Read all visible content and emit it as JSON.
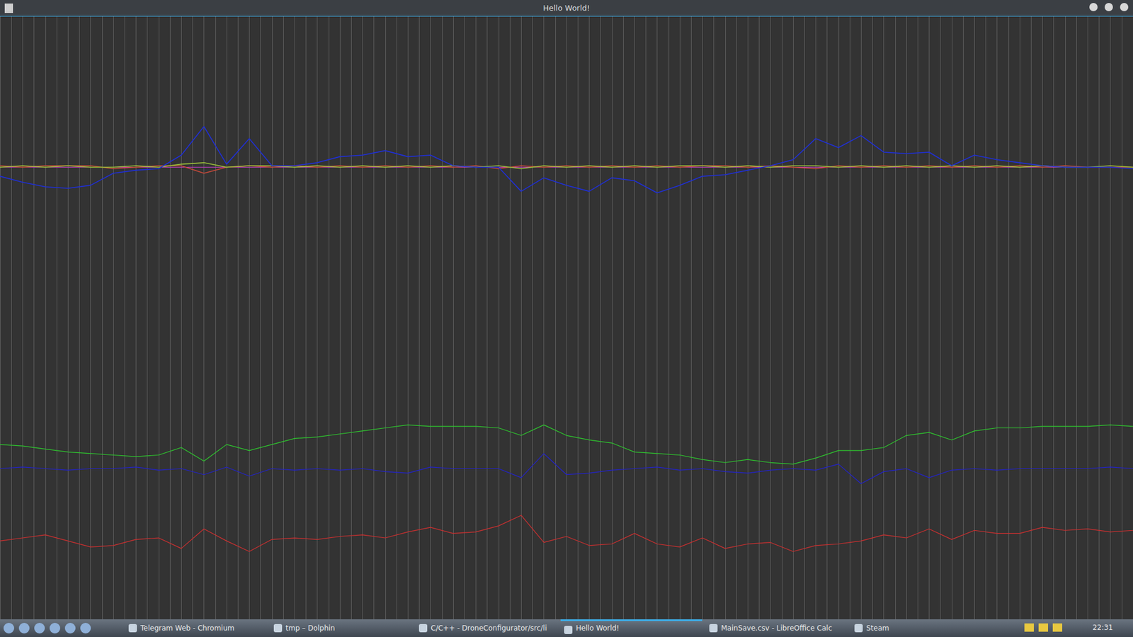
{
  "window_title": "Hello World!",
  "chart_data": [
    {
      "type": "line",
      "x": [
        0,
        2,
        4,
        6,
        8,
        10,
        12,
        14,
        16,
        18,
        20,
        22,
        24,
        26,
        28,
        30,
        32,
        34,
        36,
        38,
        40,
        42,
        44,
        46,
        48,
        50,
        52,
        54,
        56,
        58,
        60,
        62,
        64,
        66,
        68,
        70,
        72,
        74,
        76,
        78,
        80,
        82,
        84,
        86,
        88,
        90,
        92,
        94,
        96,
        98,
        100
      ],
      "xlim": [
        0,
        100
      ],
      "xticks": [
        0,
        1,
        2,
        3,
        4,
        5,
        6,
        7,
        8,
        9,
        10,
        11,
        12,
        13,
        14,
        15,
        16,
        17,
        18,
        19,
        20,
        21,
        22,
        23,
        24,
        25,
        26,
        27,
        28,
        29,
        30,
        31,
        32,
        33,
        34,
        35,
        36,
        37,
        38,
        39,
        40,
        41,
        42,
        43,
        44,
        45,
        46,
        47,
        48,
        49,
        50,
        51,
        52,
        53,
        54,
        55,
        56,
        57,
        58,
        59,
        60,
        61,
        62,
        63,
        64,
        65,
        66,
        67,
        68,
        69,
        70,
        71,
        72,
        73,
        74,
        75,
        76,
        77,
        78,
        79,
        80,
        81,
        82,
        83,
        84,
        85,
        86,
        87,
        88,
        89,
        90,
        91,
        92,
        93,
        94,
        95,
        96,
        97,
        98,
        99,
        100
      ],
      "ylim": [
        -100,
        100
      ],
      "yticks": [
        -100,
        100
      ],
      "grid": true,
      "tick_labels": false,
      "series": [
        {
          "color": "#c84a3a",
          "values": [
            1,
            0,
            1,
            1,
            1,
            -1,
            0,
            1,
            1,
            -4,
            0,
            1,
            0,
            1,
            0,
            1,
            0,
            1,
            0,
            1,
            0,
            1,
            -1,
            1,
            0,
            1,
            0,
            1,
            0,
            1,
            0,
            1,
            1,
            0,
            1,
            0,
            -1,
            1,
            0,
            1,
            0,
            1,
            0,
            1,
            0,
            1,
            0,
            1,
            0,
            0,
            0
          ]
        },
        {
          "color": "#9bbf3a",
          "values": [
            0,
            1,
            0,
            1,
            0,
            0,
            1,
            0,
            2,
            3,
            0,
            1,
            1,
            0,
            1,
            0,
            1,
            0,
            1,
            0,
            1,
            0,
            1,
            -1,
            1,
            0,
            1,
            0,
            1,
            0,
            1,
            1,
            0,
            1,
            0,
            1,
            1,
            0,
            1,
            0,
            1,
            0,
            1,
            0,
            1,
            0,
            1,
            0,
            0,
            1,
            0
          ]
        },
        {
          "color": "#1f2fd8",
          "values": [
            -6,
            -10,
            -13,
            -14,
            -12,
            -4,
            -2,
            -1,
            8,
            27,
            2,
            19,
            1,
            1,
            3,
            7,
            8,
            11,
            7,
            8,
            1,
            0,
            0,
            -16,
            -7,
            -12,
            -16,
            -7,
            -9,
            -17,
            -12,
            -6,
            -5,
            -2,
            1,
            5,
            19,
            13,
            21,
            10,
            9,
            10,
            1,
            8,
            5,
            3,
            1,
            0,
            0,
            0,
            -1
          ]
        }
      ]
    },
    {
      "type": "line",
      "x": [
        0,
        2,
        4,
        6,
        8,
        10,
        12,
        14,
        16,
        18,
        20,
        22,
        24,
        26,
        28,
        30,
        32,
        34,
        36,
        38,
        40,
        42,
        44,
        46,
        48,
        50,
        52,
        54,
        56,
        58,
        60,
        62,
        64,
        66,
        68,
        70,
        72,
        74,
        76,
        78,
        80,
        82,
        84,
        86,
        88,
        90,
        92,
        94,
        96,
        98,
        100
      ],
      "xlim": [
        0,
        100
      ],
      "xticks": [
        0,
        1,
        2,
        3,
        4,
        5,
        6,
        7,
        8,
        9,
        10,
        11,
        12,
        13,
        14,
        15,
        16,
        17,
        18,
        19,
        20,
        21,
        22,
        23,
        24,
        25,
        26,
        27,
        28,
        29,
        30,
        31,
        32,
        33,
        34,
        35,
        36,
        37,
        38,
        39,
        40,
        41,
        42,
        43,
        44,
        45,
        46,
        47,
        48,
        49,
        50,
        51,
        52,
        53,
        54,
        55,
        56,
        57,
        58,
        59,
        60,
        61,
        62,
        63,
        64,
        65,
        66,
        67,
        68,
        69,
        70,
        71,
        72,
        73,
        74,
        75,
        76,
        77,
        78,
        79,
        80,
        81,
        82,
        83,
        84,
        85,
        86,
        87,
        88,
        89,
        90,
        91,
        92,
        93,
        94,
        95,
        96,
        97,
        98,
        99,
        100
      ],
      "ylim": [
        -100,
        100
      ],
      "yticks": [
        -100,
        100
      ],
      "grid": true,
      "tick_labels": false,
      "series": [
        {
          "color": "#2ecc2e",
          "values": [
            16,
            15,
            13,
            11,
            10,
            9,
            8,
            9,
            14,
            5,
            16,
            12,
            16,
            20,
            21,
            23,
            25,
            27,
            29,
            28,
            28,
            28,
            27,
            22,
            29,
            22,
            19,
            17,
            11,
            10,
            9,
            6,
            4,
            6,
            4,
            3,
            7,
            12,
            12,
            14,
            22,
            24,
            19,
            25,
            27,
            27,
            28,
            28,
            28,
            29,
            28
          ]
        },
        {
          "color": "#2222d0",
          "values": [
            0,
            1,
            0,
            -1,
            0,
            0,
            1,
            -1,
            0,
            -4,
            1,
            -5,
            0,
            -1,
            0,
            -1,
            0,
            -2,
            -3,
            1,
            0,
            0,
            0,
            -6,
            10,
            -4,
            -3,
            -1,
            0,
            1,
            -1,
            0,
            -2,
            -3,
            -1,
            0,
            -1,
            3,
            -10,
            -2,
            0,
            -6,
            -1,
            0,
            -1,
            0,
            0,
            0,
            0,
            1,
            0
          ]
        },
        {
          "color": "#d03030",
          "values": [
            -48,
            -46,
            -44,
            -48,
            -52,
            -51,
            -47,
            -46,
            -53,
            -40,
            -48,
            -55,
            -47,
            -46,
            -47,
            -45,
            -44,
            -46,
            -42,
            -39,
            -43,
            -42,
            -38,
            -31,
            -49,
            -45,
            -51,
            -50,
            -43,
            -50,
            -52,
            -46,
            -53,
            -50,
            -49,
            -55,
            -51,
            -50,
            -48,
            -44,
            -46,
            -40,
            -47,
            -41,
            -43,
            -43,
            -39,
            -41,
            -40,
            -42,
            -41
          ]
        }
      ]
    }
  ],
  "taskbar": {
    "tasks": [
      "Telegram Web - Chromium",
      "tmp – Dolphin",
      "C/C++ - DroneConfigurator/src/li",
      "Hello World!",
      "MainSave.csv - LibreOffice Calc",
      "Steam"
    ],
    "active": "Hello World!",
    "clock": "22:31"
  }
}
